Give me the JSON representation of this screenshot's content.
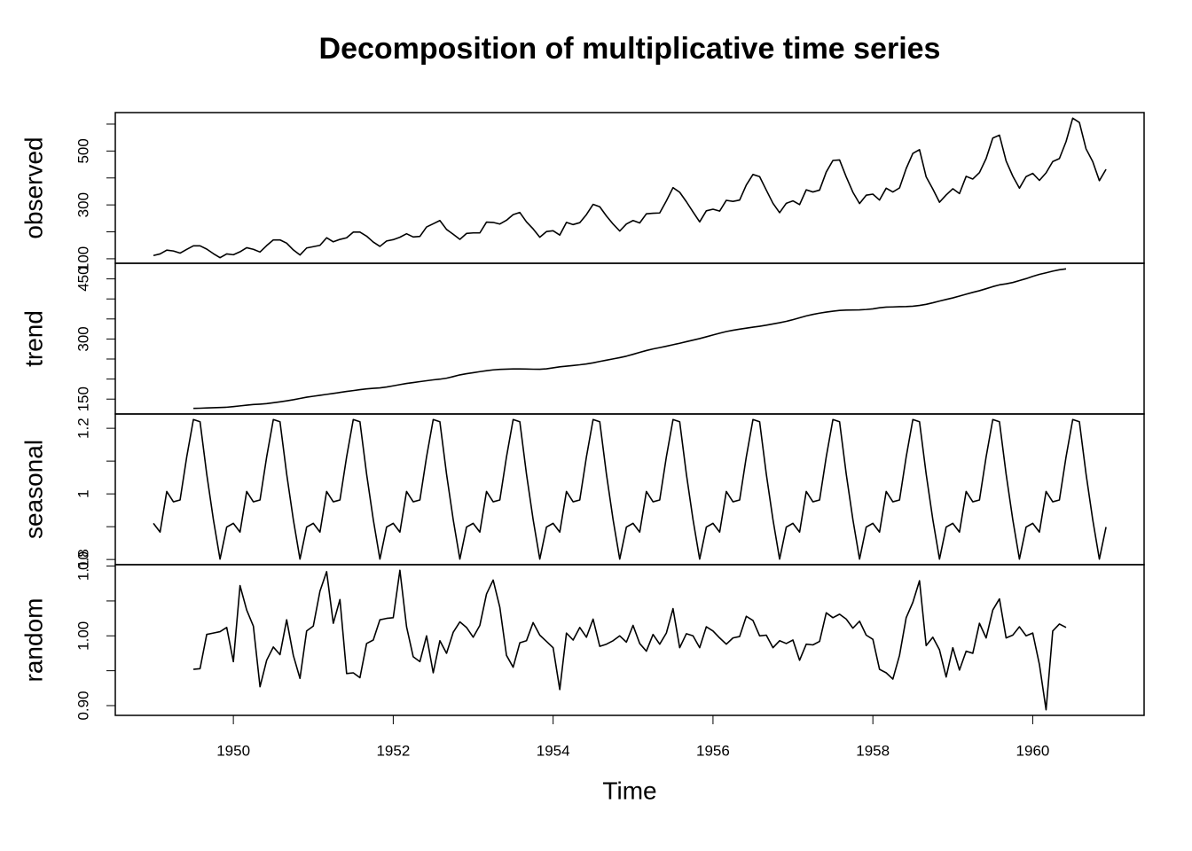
{
  "chart_data": {
    "type": "line",
    "title": "Decomposition of multiplicative time series",
    "xlabel": "Time",
    "color": "#000000",
    "xlim": [
      1948.523,
      1961.393
    ],
    "xticks": [
      1950,
      1952,
      1954,
      1956,
      1958,
      1960
    ],
    "x": [
      1949,
      1949.0833,
      1949.1667,
      1949.25,
      1949.3333,
      1949.4167,
      1949.5,
      1949.5833,
      1949.6667,
      1949.75,
      1949.8333,
      1949.9167,
      1950,
      1950.0833,
      1950.1667,
      1950.25,
      1950.3333,
      1950.4167,
      1950.5,
      1950.5833,
      1950.6667,
      1950.75,
      1950.8333,
      1950.9167,
      1951,
      1951.0833,
      1951.1667,
      1951.25,
      1951.3333,
      1951.4167,
      1951.5,
      1951.5833,
      1951.6667,
      1951.75,
      1951.8333,
      1951.9167,
      1952,
      1952.0833,
      1952.1667,
      1952.25,
      1952.3333,
      1952.4167,
      1952.5,
      1952.5833,
      1952.6667,
      1952.75,
      1952.8333,
      1952.9167,
      1953,
      1953.0833,
      1953.1667,
      1953.25,
      1953.3333,
      1953.4167,
      1953.5,
      1953.5833,
      1953.6667,
      1953.75,
      1953.8333,
      1953.9167,
      1954,
      1954.0833,
      1954.1667,
      1954.25,
      1954.3333,
      1954.4167,
      1954.5,
      1954.5833,
      1954.6667,
      1954.75,
      1954.8333,
      1954.9167,
      1955,
      1955.0833,
      1955.1667,
      1955.25,
      1955.3333,
      1955.4167,
      1955.5,
      1955.5833,
      1955.6667,
      1955.75,
      1955.8333,
      1955.9167,
      1956,
      1956.0833,
      1956.1667,
      1956.25,
      1956.3333,
      1956.4167,
      1956.5,
      1956.5833,
      1956.6667,
      1956.75,
      1956.8333,
      1956.9167,
      1957,
      1957.0833,
      1957.1667,
      1957.25,
      1957.3333,
      1957.4167,
      1957.5,
      1957.5833,
      1957.6667,
      1957.75,
      1957.8333,
      1957.9167,
      1958,
      1958.0833,
      1958.1667,
      1958.25,
      1958.3333,
      1958.4167,
      1958.5,
      1958.5833,
      1958.6667,
      1958.75,
      1958.8333,
      1958.9167,
      1959,
      1959.0833,
      1959.1667,
      1959.25,
      1959.3333,
      1959.4167,
      1959.5,
      1959.5833,
      1959.6667,
      1959.75,
      1959.8333,
      1959.9167,
      1960,
      1960.0833,
      1960.1667,
      1960.25,
      1960.3333,
      1960.4167,
      1960.5,
      1960.5833,
      1960.6667,
      1960.75,
      1960.8333,
      1960.9167
    ],
    "panels": [
      {
        "ylabel": "observed",
        "ylim": [
          83.28,
          642.72
        ],
        "yticks": [
          100,
          300,
          500
        ],
        "yminor": [
          200,
          400,
          600
        ],
        "values": [
          112,
          118,
          132,
          129,
          121,
          135,
          148,
          148,
          136,
          119,
          104,
          118,
          115,
          126,
          141,
          135,
          125,
          149,
          170,
          170,
          158,
          133,
          114,
          140,
          145,
          150,
          178,
          163,
          172,
          178,
          199,
          199,
          184,
          162,
          146,
          166,
          171,
          180,
          193,
          181,
          183,
          218,
          230,
          242,
          209,
          191,
          172,
          194,
          196,
          196,
          236,
          235,
          229,
          243,
          264,
          272,
          237,
          211,
          180,
          201,
          204,
          188,
          235,
          227,
          234,
          264,
          302,
          293,
          259,
          229,
          203,
          229,
          242,
          233,
          267,
          269,
          270,
          315,
          364,
          347,
          312,
          274,
          237,
          278,
          284,
          277,
          317,
          313,
          318,
          374,
          413,
          405,
          355,
          306,
          271,
          306,
          315,
          301,
          356,
          348,
          355,
          422,
          465,
          467,
          404,
          347,
          305,
          336,
          340,
          318,
          362,
          348,
          363,
          435,
          491,
          505,
          404,
          359,
          310,
          337,
          360,
          342,
          406,
          396,
          420,
          472,
          548,
          559,
          463,
          407,
          362,
          405,
          417,
          391,
          419,
          461,
          472,
          535,
          622,
          606,
          508,
          461,
          390,
          432
        ]
      },
      {
        "ylabel": "trend",
        "ylim": [
          112.86,
          488.97
        ],
        "yticks": [
          150,
          300,
          450
        ],
        "yminor": [
          200,
          250,
          350,
          400
        ],
        "values": [
          null,
          null,
          null,
          null,
          null,
          null,
          126.79,
          127.25,
          127.96,
          128.58,
          129.0,
          129.75,
          131.25,
          133.08,
          134.92,
          136.42,
          137.42,
          138.75,
          140.92,
          143.17,
          145.71,
          148.42,
          151.54,
          154.71,
          157.13,
          159.54,
          161.83,
          164.13,
          166.67,
          169.08,
          171.25,
          173.58,
          175.46,
          176.83,
          178.04,
          180.17,
          183.13,
          186.21,
          189.04,
          191.29,
          193.58,
          195.83,
          198.04,
          199.75,
          202.21,
          206.25,
          210.42,
          213.38,
          215.83,
          218.5,
          220.92,
          222.92,
          224.08,
          224.71,
          225.33,
          225.33,
          224.96,
          224.58,
          224.46,
          225.54,
          228.0,
          230.46,
          232.25,
          233.92,
          235.63,
          237.75,
          240.5,
          243.96,
          247.17,
          250.25,
          253.5,
          257.13,
          261.83,
          266.67,
          271.13,
          275.21,
          278.5,
          281.96,
          285.75,
          289.33,
          293.25,
          297.17,
          301.0,
          305.46,
          309.96,
          314.42,
          318.63,
          321.75,
          324.5,
          327.08,
          329.54,
          331.83,
          334.46,
          337.54,
          340.54,
          344.08,
          348.25,
          353.0,
          357.63,
          361.38,
          364.5,
          367.17,
          369.46,
          371.21,
          372.17,
          372.42,
          372.75,
          373.63,
          375.25,
          377.92,
          379.5,
          380.0,
          380.71,
          380.96,
          381.83,
          383.67,
          386.5,
          390.33,
          394.71,
          398.63,
          402.54,
          407.17,
          411.88,
          416.33,
          420.5,
          425.5,
          430.71,
          435.13,
          437.71,
          440.96,
          445.83,
          450.63,
          456.33,
          461.38,
          465.21,
          469.33,
          472.75,
          475.04,
          null,
          null,
          null,
          null,
          null,
          null
        ]
      },
      {
        "ylabel": "seasonal",
        "ylim": [
          0.7842,
          1.2436
        ],
        "yticks": [
          0.8,
          1.0,
          1.2
        ],
        "yminor": [
          0.9,
          1.1
        ],
        "values": [
          0.9102,
          0.8836,
          1.0074,
          0.9759,
          0.9814,
          1.1128,
          1.2266,
          1.2199,
          1.0605,
          0.9218,
          0.8012,
          0.8988,
          0.9102,
          0.8836,
          1.0074,
          0.9759,
          0.9814,
          1.1128,
          1.2266,
          1.2199,
          1.0605,
          0.9218,
          0.8012,
          0.8988,
          0.9102,
          0.8836,
          1.0074,
          0.9759,
          0.9814,
          1.1128,
          1.2266,
          1.2199,
          1.0605,
          0.9218,
          0.8012,
          0.8988,
          0.9102,
          0.8836,
          1.0074,
          0.9759,
          0.9814,
          1.1128,
          1.2266,
          1.2199,
          1.0605,
          0.9218,
          0.8012,
          0.8988,
          0.9102,
          0.8836,
          1.0074,
          0.9759,
          0.9814,
          1.1128,
          1.2266,
          1.2199,
          1.0605,
          0.9218,
          0.8012,
          0.8988,
          0.9102,
          0.8836,
          1.0074,
          0.9759,
          0.9814,
          1.1128,
          1.2266,
          1.2199,
          1.0605,
          0.9218,
          0.8012,
          0.8988,
          0.9102,
          0.8836,
          1.0074,
          0.9759,
          0.9814,
          1.1128,
          1.2266,
          1.2199,
          1.0605,
          0.9218,
          0.8012,
          0.8988,
          0.9102,
          0.8836,
          1.0074,
          0.9759,
          0.9814,
          1.1128,
          1.2266,
          1.2199,
          1.0605,
          0.9218,
          0.8012,
          0.8988,
          0.9102,
          0.8836,
          1.0074,
          0.9759,
          0.9814,
          1.1128,
          1.2266,
          1.2199,
          1.0605,
          0.9218,
          0.8012,
          0.8988,
          0.9102,
          0.8836,
          1.0074,
          0.9759,
          0.9814,
          1.1128,
          1.2266,
          1.2199,
          1.0605,
          0.9218,
          0.8012,
          0.8988,
          0.9102,
          0.8836,
          1.0074,
          0.9759,
          0.9814,
          1.1128,
          1.2266,
          1.2199,
          1.0605,
          0.9218,
          0.8012,
          0.8988,
          0.9102,
          0.8836,
          1.0074,
          0.9759,
          0.9814,
          1.1128,
          1.2266,
          1.2199,
          1.0605,
          0.9218,
          0.8012,
          0.8988
        ]
      },
      {
        "ylabel": "random",
        "ylim": [
          0.886,
          1.102
        ],
        "yticks": [
          {
            "value": 0.9,
            "label": "0.90"
          },
          {
            "value": 1.0,
            "label": "1.00"
          },
          {
            "value": 1.1,
            "label": "1.10"
          }
        ],
        "yminor": [
          0.95,
          1.05
        ],
        "values": [
          null,
          null,
          null,
          null,
          null,
          null,
          0.952,
          0.953,
          1.002,
          1.004,
          1.006,
          1.012,
          0.963,
          1.072,
          1.037,
          1.014,
          0.927,
          0.965,
          0.984,
          0.973,
          1.023,
          0.972,
          0.939,
          1.007,
          1.014,
          1.064,
          1.092,
          1.018,
          1.052,
          0.946,
          0.947,
          0.94,
          0.989,
          0.994,
          1.023,
          1.025,
          1.026,
          1.094,
          1.013,
          0.97,
          0.963,
          1.0,
          0.947,
          0.993,
          0.975,
          1.005,
          1.02,
          1.012,
          0.998,
          1.015,
          1.06,
          1.08,
          1.041,
          0.972,
          0.955,
          0.99,
          0.993,
          1.019,
          1.001,
          0.992,
          0.983,
          0.923,
          1.004,
          0.994,
          1.012,
          0.998,
          1.024,
          0.985,
          0.988,
          0.993,
          1.0,
          0.991,
          1.015,
          0.989,
          0.978,
          1.002,
          0.988,
          1.004,
          1.039,
          0.983,
          1.003,
          1.0,
          0.983,
          1.013,
          1.007,
          0.997,
          0.988,
          0.997,
          0.999,
          1.028,
          1.022,
          1.0,
          1.001,
          0.983,
          0.993,
          0.989,
          0.994,
          0.965,
          0.988,
          0.987,
          0.992,
          1.033,
          1.026,
          1.031,
          1.024,
          1.011,
          1.021,
          1.001,
          0.995,
          0.952,
          0.947,
          0.938,
          0.972,
          1.026,
          1.048,
          1.079,
          0.986,
          0.998,
          0.98,
          0.941,
          0.983,
          0.951,
          0.978,
          0.975,
          1.018,
          0.997,
          1.037,
          1.053,
          0.997,
          1.001,
          1.013,
          1.0,
          1.004,
          0.959,
          0.894,
          1.007,
          1.017,
          1.012,
          null,
          null,
          null,
          null,
          null,
          null
        ]
      }
    ]
  }
}
